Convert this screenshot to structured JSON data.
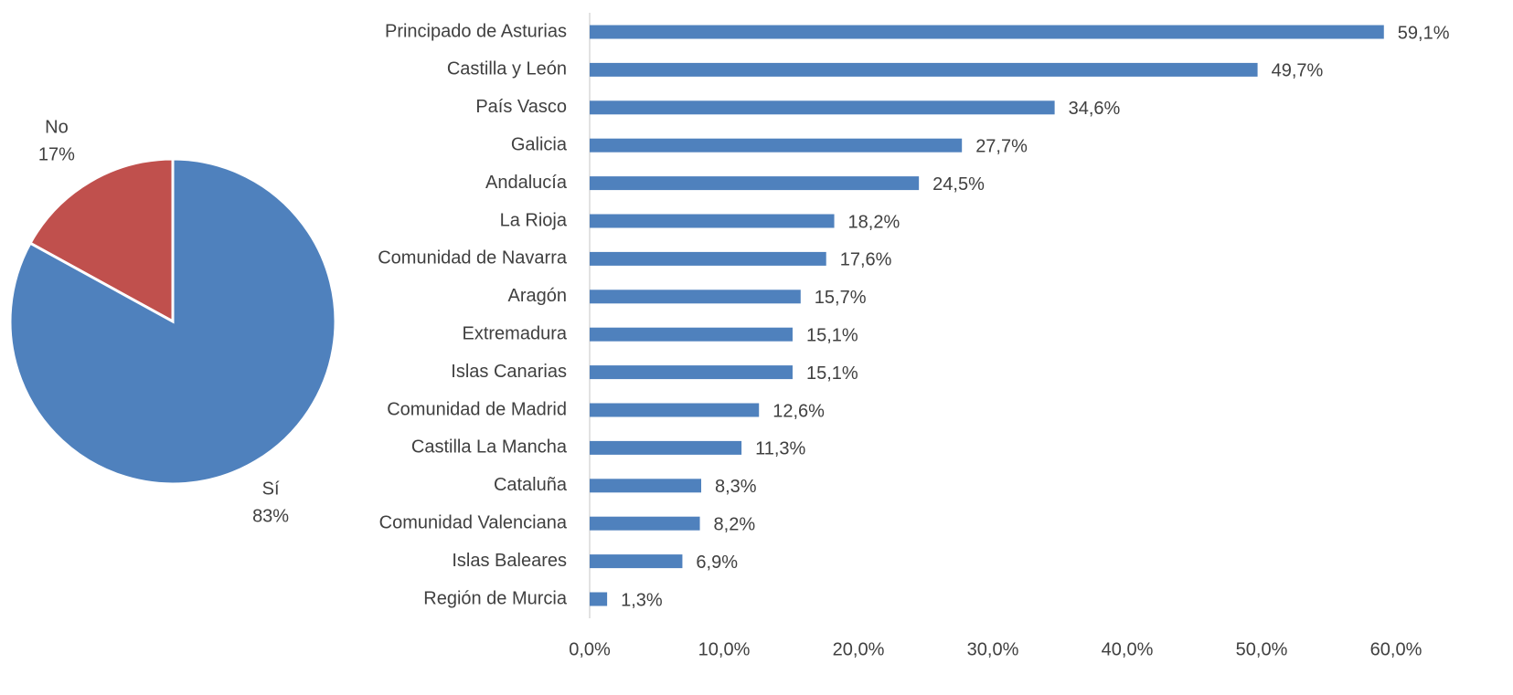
{
  "chart_data": [
    {
      "type": "pie",
      "categories": [
        "No",
        "Sí"
      ],
      "values": [
        17,
        83
      ],
      "value_labels": [
        "17%",
        "83%"
      ],
      "colors": [
        "#c0504d",
        "#4f81bd"
      ]
    },
    {
      "type": "hbar",
      "color": "#4f81bd",
      "categories": [
        "Principado de Asturias",
        "Castilla y León",
        "País Vasco",
        "Galicia",
        "Andalucía",
        "La Rioja",
        "Comunidad de Navarra",
        "Aragón",
        "Extremadura",
        "Islas Canarias",
        "Comunidad de Madrid",
        "Castilla La Mancha",
        "Cataluña",
        "Comunidad Valenciana",
        "Islas Baleares",
        "Región de Murcia"
      ],
      "values": [
        59.1,
        49.7,
        34.6,
        27.7,
        24.5,
        18.2,
        17.6,
        15.7,
        15.1,
        15.1,
        12.6,
        11.3,
        8.3,
        8.2,
        6.9,
        1.3
      ],
      "value_labels": [
        "59,1%",
        "49,7%",
        "34,6%",
        "27,7%",
        "24,5%",
        "18,2%",
        "17,6%",
        "15,7%",
        "15,1%",
        "15,1%",
        "12,6%",
        "11,3%",
        "8,3%",
        "8,2%",
        "6,9%",
        "1,3%"
      ],
      "xlim": [
        0,
        60
      ],
      "xticks": [
        {
          "value": 0,
          "label": "0,0%"
        },
        {
          "value": 10,
          "label": "10,0%"
        },
        {
          "value": 20,
          "label": "20,0%"
        },
        {
          "value": 30,
          "label": "30,0%"
        },
        {
          "value": 40,
          "label": "40,0%"
        },
        {
          "value": 50,
          "label": "50,0%"
        },
        {
          "value": 60,
          "label": "60,0%"
        }
      ]
    }
  ]
}
